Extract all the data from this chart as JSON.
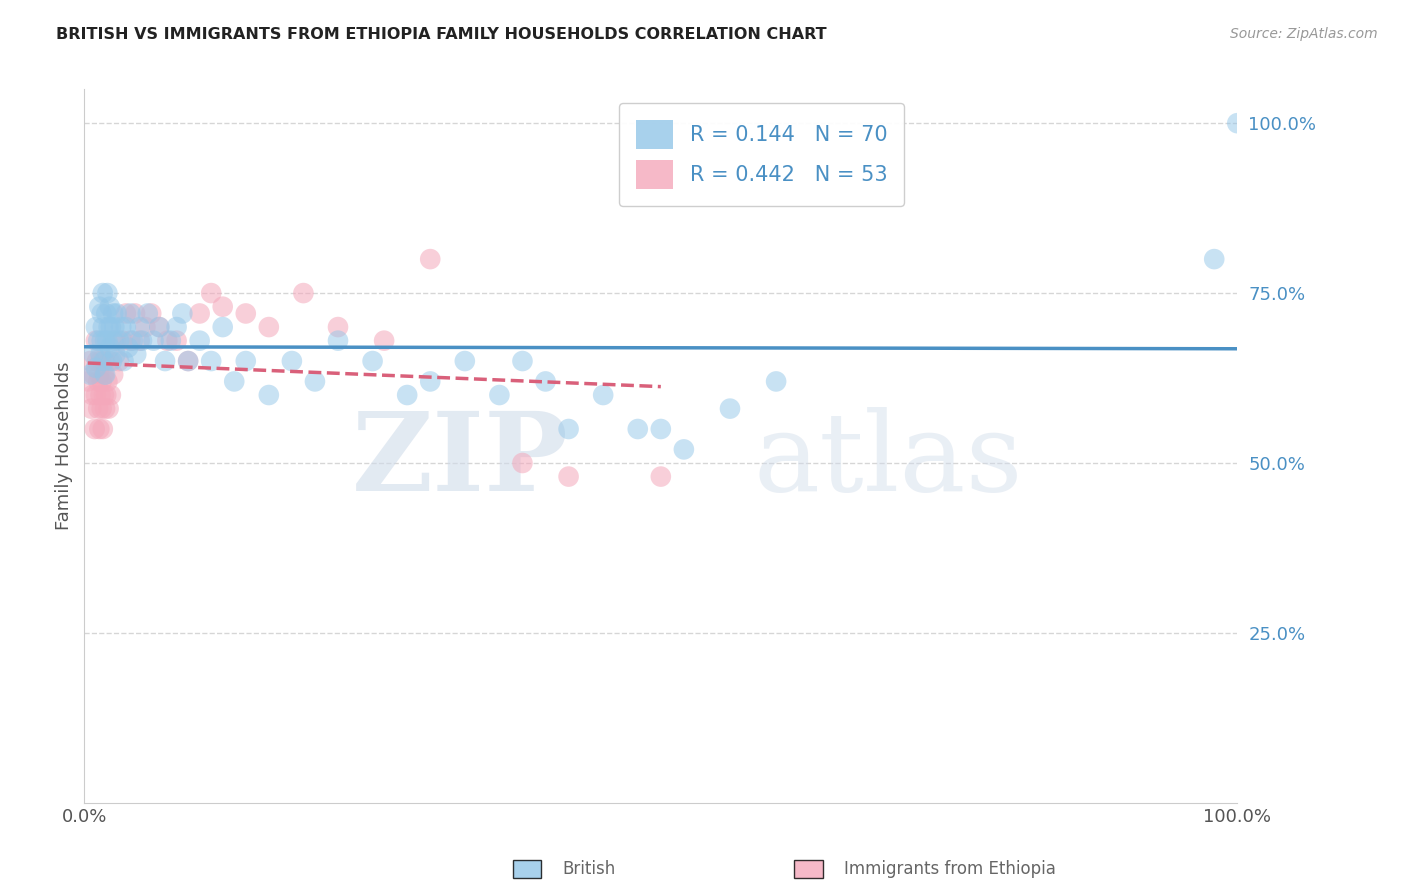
{
  "title": "BRITISH VS IMMIGRANTS FROM ETHIOPIA FAMILY HOUSEHOLDS CORRELATION CHART",
  "source": "Source: ZipAtlas.com",
  "ylabel": "Family Households",
  "xlim": [
    0.0,
    1.0
  ],
  "ylim": [
    0.0,
    1.05
  ],
  "yticks": [
    0.25,
    0.5,
    0.75,
    1.0
  ],
  "ytick_labels": [
    "25.0%",
    "50.0%",
    "75.0%",
    "100.0%"
  ],
  "british_R": 0.144,
  "british_N": 70,
  "ethiopia_R": 0.442,
  "ethiopia_N": 53,
  "british_color": "#93c6e8",
  "ethiopia_color": "#f4a8bb",
  "british_line_color": "#4a90c4",
  "ethiopia_line_color": "#d9607a",
  "background_color": "#ffffff",
  "grid_color": "#cccccc",
  "watermark_zip": "ZIP",
  "watermark_atlas": "atlas",
  "british_x": [
    0.005,
    0.008,
    0.01,
    0.01,
    0.012,
    0.013,
    0.014,
    0.015,
    0.015,
    0.016,
    0.016,
    0.017,
    0.018,
    0.018,
    0.019,
    0.02,
    0.02,
    0.021,
    0.022,
    0.022,
    0.023,
    0.024,
    0.025,
    0.025,
    0.026,
    0.027,
    0.028,
    0.03,
    0.032,
    0.034,
    0.036,
    0.038,
    0.04,
    0.042,
    0.045,
    0.048,
    0.05,
    0.055,
    0.06,
    0.065,
    0.07,
    0.075,
    0.08,
    0.085,
    0.09,
    0.1,
    0.11,
    0.12,
    0.13,
    0.14,
    0.16,
    0.18,
    0.2,
    0.22,
    0.25,
    0.28,
    0.3,
    0.33,
    0.36,
    0.38,
    0.4,
    0.42,
    0.45,
    0.48,
    0.5,
    0.52,
    0.56,
    0.6,
    0.98,
    1.0
  ],
  "british_y": [
    0.63,
    0.66,
    0.7,
    0.64,
    0.68,
    0.73,
    0.66,
    0.72,
    0.68,
    0.75,
    0.7,
    0.65,
    0.68,
    0.63,
    0.72,
    0.68,
    0.75,
    0.7,
    0.73,
    0.67,
    0.7,
    0.65,
    0.72,
    0.68,
    0.7,
    0.66,
    0.72,
    0.68,
    0.7,
    0.65,
    0.7,
    0.67,
    0.72,
    0.68,
    0.66,
    0.7,
    0.68,
    0.72,
    0.68,
    0.7,
    0.65,
    0.68,
    0.7,
    0.72,
    0.65,
    0.68,
    0.65,
    0.7,
    0.62,
    0.65,
    0.6,
    0.65,
    0.62,
    0.68,
    0.65,
    0.6,
    0.62,
    0.65,
    0.6,
    0.65,
    0.62,
    0.55,
    0.6,
    0.55,
    0.55,
    0.52,
    0.58,
    0.62,
    0.8,
    1.0
  ],
  "ethiopia_x": [
    0.003,
    0.005,
    0.006,
    0.007,
    0.008,
    0.009,
    0.01,
    0.01,
    0.011,
    0.012,
    0.012,
    0.013,
    0.013,
    0.014,
    0.014,
    0.015,
    0.015,
    0.016,
    0.017,
    0.017,
    0.018,
    0.018,
    0.019,
    0.02,
    0.021,
    0.022,
    0.023,
    0.025,
    0.027,
    0.03,
    0.033,
    0.036,
    0.04,
    0.044,
    0.048,
    0.053,
    0.058,
    0.065,
    0.072,
    0.08,
    0.09,
    0.1,
    0.11,
    0.12,
    0.14,
    0.16,
    0.19,
    0.22,
    0.26,
    0.3,
    0.38,
    0.42,
    0.5
  ],
  "ethiopia_y": [
    0.62,
    0.65,
    0.58,
    0.6,
    0.63,
    0.55,
    0.68,
    0.6,
    0.65,
    0.58,
    0.62,
    0.55,
    0.63,
    0.6,
    0.65,
    0.58,
    0.62,
    0.55,
    0.6,
    0.63,
    0.58,
    0.65,
    0.6,
    0.62,
    0.58,
    0.65,
    0.6,
    0.63,
    0.68,
    0.65,
    0.68,
    0.72,
    0.68,
    0.72,
    0.68,
    0.7,
    0.72,
    0.7,
    0.68,
    0.68,
    0.65,
    0.72,
    0.75,
    0.73,
    0.72,
    0.7,
    0.75,
    0.7,
    0.68,
    0.8,
    0.5,
    0.48,
    0.48
  ]
}
